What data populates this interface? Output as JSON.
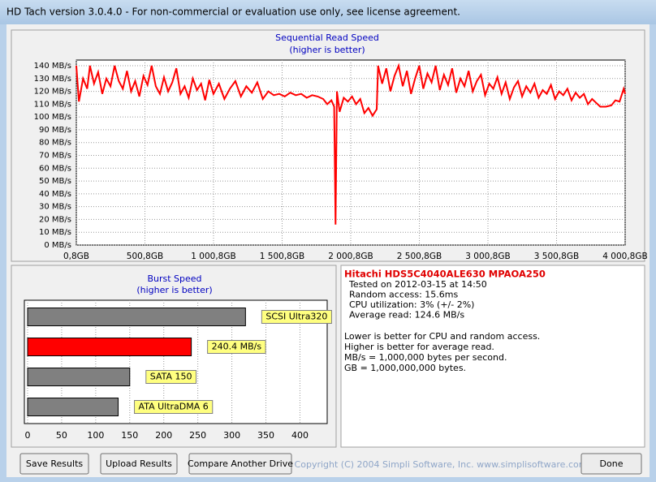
{
  "window_title": "HD Tach version 3.0.4.0  - For non-commercial or evaluation use only, see license agreement.",
  "chart_data": [
    {
      "type": "line",
      "title": "Sequential Read Speed",
      "subtitle": "(higher is better)",
      "color": "#ff0000",
      "grid": true,
      "x": [
        0.8,
        20,
        50,
        80,
        100,
        130,
        160,
        190,
        220,
        250,
        280,
        310,
        340,
        370,
        400,
        430,
        460,
        490,
        520,
        550,
        580,
        610,
        640,
        670,
        700,
        730,
        760,
        790,
        820,
        850,
        880,
        910,
        940,
        970,
        1000,
        1040,
        1080,
        1120,
        1160,
        1200,
        1240,
        1280,
        1320,
        1360,
        1400,
        1440,
        1480,
        1520,
        1560,
        1600,
        1640,
        1680,
        1720,
        1760,
        1800,
        1830,
        1860,
        1880,
        1890,
        1900,
        1920,
        1950,
        1980,
        2010,
        2040,
        2070,
        2100,
        2130,
        2160,
        2190,
        2200,
        2230,
        2260,
        2290,
        2320,
        2350,
        2380,
        2410,
        2440,
        2470,
        2500,
        2530,
        2560,
        2590,
        2620,
        2650,
        2680,
        2710,
        2740,
        2770,
        2800,
        2830,
        2860,
        2890,
        2920,
        2950,
        2980,
        3010,
        3040,
        3070,
        3100,
        3130,
        3160,
        3190,
        3220,
        3250,
        3280,
        3310,
        3340,
        3370,
        3400,
        3430,
        3460,
        3490,
        3520,
        3550,
        3580,
        3610,
        3640,
        3670,
        3700,
        3730,
        3760,
        3790,
        3820,
        3860,
        3900,
        3930,
        3960,
        3990,
        4000.8
      ],
      "values": [
        140,
        112,
        130,
        122,
        140,
        126,
        135,
        118,
        130,
        124,
        140,
        128,
        122,
        136,
        120,
        128,
        116,
        132,
        125,
        140,
        124,
        118,
        131,
        120,
        127,
        138,
        118,
        124,
        115,
        130,
        121,
        126,
        113,
        129,
        118,
        126,
        114,
        122,
        128,
        116,
        124,
        119,
        127,
        114,
        120,
        117,
        118,
        116,
        119,
        117,
        118,
        115,
        117,
        116,
        114,
        110,
        113,
        108,
        16,
        120,
        104,
        115,
        112,
        116,
        110,
        114,
        103,
        107,
        101,
        106,
        140,
        126,
        138,
        120,
        132,
        140,
        124,
        136,
        118,
        130,
        140,
        122,
        134,
        127,
        140,
        121,
        133,
        125,
        138,
        119,
        130,
        124,
        136,
        120,
        128,
        133,
        117,
        126,
        122,
        131,
        118,
        127,
        114,
        123,
        128,
        116,
        124,
        119,
        126,
        115,
        121,
        118,
        125,
        114,
        120,
        117,
        122,
        113,
        119,
        115,
        118,
        110,
        114,
        111,
        108,
        108,
        109,
        113,
        112,
        122,
        118
      ],
      "xlim": [
        0.8,
        4000.8
      ],
      "xticks": [
        {
          "value": 0.8,
          "label": "0,8GB"
        },
        {
          "value": 500.8,
          "label": "500,8GB"
        },
        {
          "value": 1000.8,
          "label": "1 000,8GB"
        },
        {
          "value": 1500.8,
          "label": "1 500,8GB"
        },
        {
          "value": 2000.8,
          "label": "2 000,8GB"
        },
        {
          "value": 2500.8,
          "label": "2 500,8GB"
        },
        {
          "value": 3000.8,
          "label": "3 000,8GB"
        },
        {
          "value": 3500.8,
          "label": "3 500,8GB"
        },
        {
          "value": 4000.8,
          "label": "4 000,8GB"
        }
      ],
      "ylim": [
        0,
        140
      ],
      "yticks": [
        {
          "value": 0,
          "label": "0 MB/s"
        },
        {
          "value": 10,
          "label": "10 MB/s"
        },
        {
          "value": 20,
          "label": "20 MB/s"
        },
        {
          "value": 30,
          "label": "30 MB/s"
        },
        {
          "value": 40,
          "label": "40 MB/s"
        },
        {
          "value": 50,
          "label": "50 MB/s"
        },
        {
          "value": 60,
          "label": "60 MB/s"
        },
        {
          "value": 70,
          "label": "70 MB/s"
        },
        {
          "value": 80,
          "label": "80 MB/s"
        },
        {
          "value": 90,
          "label": "90 MB/s"
        },
        {
          "value": 100,
          "label": "100 MB/s"
        },
        {
          "value": 110,
          "label": "110 MB/s"
        },
        {
          "value": 120,
          "label": "120 MB/s"
        },
        {
          "value": 130,
          "label": "130 MB/s"
        },
        {
          "value": 140,
          "label": "140 MB/s"
        }
      ]
    },
    {
      "type": "bar",
      "orientation": "horizontal",
      "title": "Burst Speed",
      "subtitle": "(higher is better)",
      "grid": true,
      "categories": [
        "SCSI Ultra320",
        null,
        "SATA 150",
        "ATA UltraDMA 6"
      ],
      "values": [
        320,
        240.4,
        150,
        133
      ],
      "value_labels": [
        null,
        "240.4 MB/s",
        null,
        null
      ],
      "colors": [
        "#808080",
        "#ff0000",
        "#808080",
        "#808080"
      ],
      "xlim": [
        0,
        440
      ],
      "xticks": [
        0,
        50,
        100,
        150,
        200,
        250,
        300,
        350,
        400
      ]
    }
  ],
  "info": {
    "title": "Hitachi HDS5C4040ALE630 MPAOA250",
    "lines": [
      "Tested on 2012-03-15 at 14:50",
      "Random access: 15.6ms",
      "CPU utilization: 3% (+/- 2%)",
      "Average read: 124.6 MB/s"
    ],
    "notes": [
      "Lower is better for CPU and random access.",
      "Higher is better for average read.",
      "MB/s = 1,000,000 bytes per second.",
      "GB = 1,000,000,000 bytes."
    ]
  },
  "buttons": [
    "Save Results",
    "Upload Results",
    "Compare Another Drive",
    "Done"
  ],
  "copyright": "Copyright (C) 2004 Simpli Software, Inc. www.simplisoftware.com"
}
